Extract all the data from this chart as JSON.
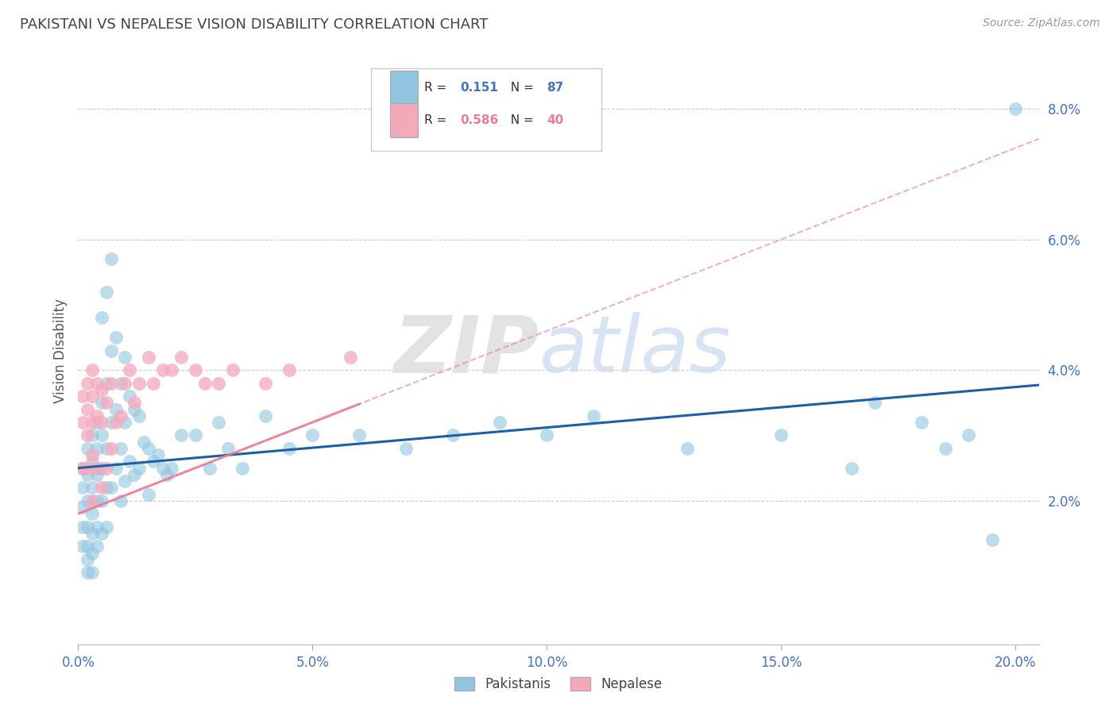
{
  "title": "PAKISTANI VS NEPALESE VISION DISABILITY CORRELATION CHART",
  "source": "Source: ZipAtlas.com",
  "ylabel_left": "Vision Disability",
  "xlim": [
    0.0,
    0.205
  ],
  "ylim": [
    -0.002,
    0.088
  ],
  "yticks_right": [
    0.02,
    0.04,
    0.06,
    0.08
  ],
  "ytick_labels_right": [
    "2.0%",
    "4.0%",
    "6.0%",
    "8.0%"
  ],
  "xticks": [
    0.0,
    0.05,
    0.1,
    0.15,
    0.2
  ],
  "xtick_labels": [
    "0.0%",
    "5.0%",
    "10.0%",
    "15.0%",
    "20.0%"
  ],
  "legend_r_blue": "R = ",
  "legend_r_blue_val": "0.151",
  "legend_n_blue": "N = ",
  "legend_n_blue_val": "87",
  "legend_r_pink": "R = ",
  "legend_r_pink_val": "0.586",
  "legend_n_pink": "N = ",
  "legend_n_pink_val": "40",
  "blue_scatter_color": "#92c5de",
  "pink_scatter_color": "#f4a9bb",
  "blue_line_color": "#1a5fa8",
  "pink_line_color": "#e87c96",
  "title_color": "#444444",
  "axis_label_color": "#4472c4",
  "grid_color": "#cccccc",
  "blue_reg_intercept": 0.025,
  "blue_reg_slope": 0.062,
  "pink_reg_intercept": 0.018,
  "pink_reg_slope": 0.28,
  "pakistanis_x": [
    0.001,
    0.001,
    0.001,
    0.001,
    0.001,
    0.002,
    0.002,
    0.002,
    0.002,
    0.002,
    0.002,
    0.002,
    0.003,
    0.003,
    0.003,
    0.003,
    0.003,
    0.003,
    0.003,
    0.004,
    0.004,
    0.004,
    0.004,
    0.004,
    0.004,
    0.005,
    0.005,
    0.005,
    0.005,
    0.005,
    0.005,
    0.006,
    0.006,
    0.006,
    0.006,
    0.006,
    0.007,
    0.007,
    0.007,
    0.007,
    0.008,
    0.008,
    0.008,
    0.009,
    0.009,
    0.009,
    0.01,
    0.01,
    0.01,
    0.011,
    0.011,
    0.012,
    0.012,
    0.013,
    0.013,
    0.014,
    0.015,
    0.015,
    0.016,
    0.017,
    0.018,
    0.019,
    0.02,
    0.022,
    0.025,
    0.028,
    0.03,
    0.032,
    0.035,
    0.04,
    0.045,
    0.05,
    0.06,
    0.07,
    0.08,
    0.09,
    0.1,
    0.11,
    0.13,
    0.15,
    0.165,
    0.17,
    0.18,
    0.185,
    0.19,
    0.195,
    0.2
  ],
  "pakistanis_y": [
    0.025,
    0.022,
    0.019,
    0.016,
    0.013,
    0.028,
    0.024,
    0.02,
    0.016,
    0.013,
    0.011,
    0.009,
    0.03,
    0.026,
    0.022,
    0.018,
    0.015,
    0.012,
    0.009,
    0.032,
    0.028,
    0.024,
    0.02,
    0.016,
    0.013,
    0.035,
    0.048,
    0.03,
    0.025,
    0.02,
    0.015,
    0.052,
    0.038,
    0.028,
    0.022,
    0.016,
    0.057,
    0.043,
    0.032,
    0.022,
    0.045,
    0.034,
    0.025,
    0.038,
    0.028,
    0.02,
    0.042,
    0.032,
    0.023,
    0.036,
    0.026,
    0.034,
    0.024,
    0.033,
    0.025,
    0.029,
    0.028,
    0.021,
    0.026,
    0.027,
    0.025,
    0.024,
    0.025,
    0.03,
    0.03,
    0.025,
    0.032,
    0.028,
    0.025,
    0.033,
    0.028,
    0.03,
    0.03,
    0.028,
    0.03,
    0.032,
    0.03,
    0.033,
    0.028,
    0.03,
    0.025,
    0.035,
    0.032,
    0.028,
    0.03,
    0.014,
    0.08
  ],
  "nepalese_x": [
    0.001,
    0.001,
    0.001,
    0.002,
    0.002,
    0.002,
    0.002,
    0.003,
    0.003,
    0.003,
    0.003,
    0.003,
    0.004,
    0.004,
    0.004,
    0.005,
    0.005,
    0.005,
    0.006,
    0.006,
    0.007,
    0.007,
    0.008,
    0.009,
    0.01,
    0.011,
    0.012,
    0.013,
    0.015,
    0.016,
    0.018,
    0.02,
    0.022,
    0.025,
    0.027,
    0.03,
    0.033,
    0.04,
    0.045,
    0.058
  ],
  "nepalese_y": [
    0.036,
    0.032,
    0.025,
    0.038,
    0.034,
    0.03,
    0.025,
    0.04,
    0.036,
    0.032,
    0.027,
    0.02,
    0.038,
    0.033,
    0.025,
    0.037,
    0.032,
    0.022,
    0.035,
    0.025,
    0.038,
    0.028,
    0.032,
    0.033,
    0.038,
    0.04,
    0.035,
    0.038,
    0.042,
    0.038,
    0.04,
    0.04,
    0.042,
    0.04,
    0.038,
    0.038,
    0.04,
    0.038,
    0.04,
    0.042
  ]
}
